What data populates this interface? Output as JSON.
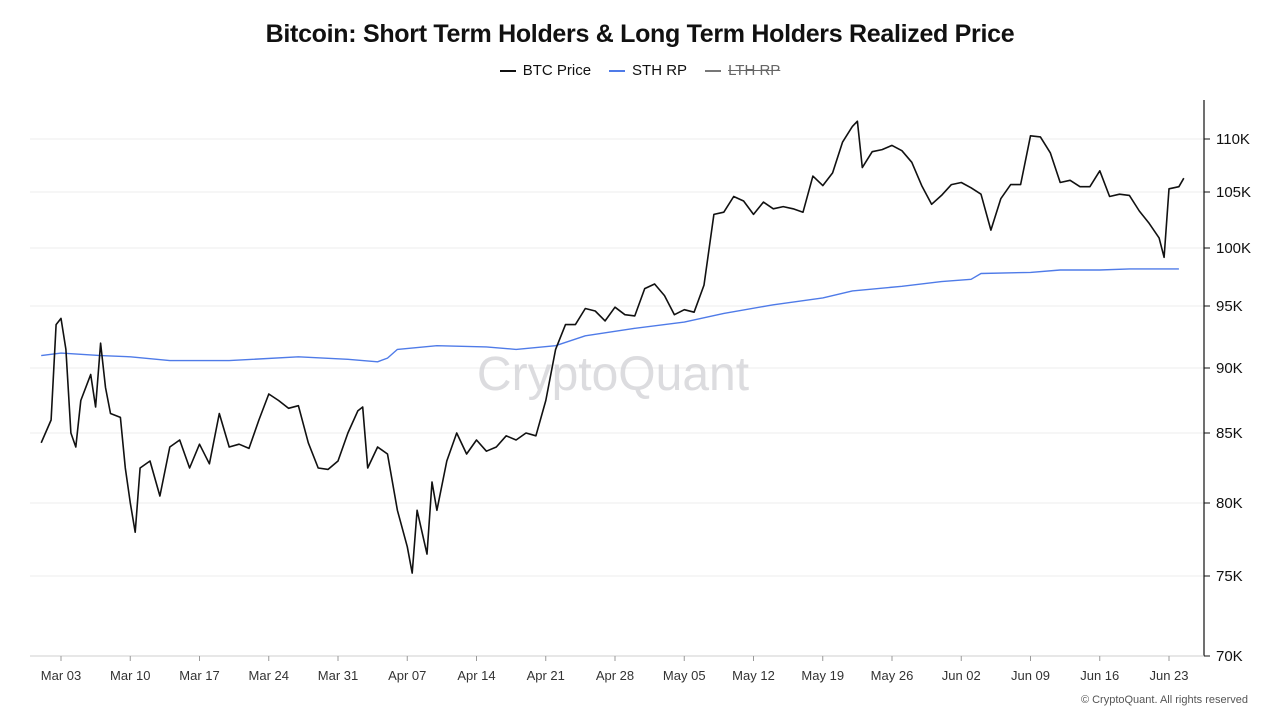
{
  "chart_data": {
    "type": "line",
    "title": "Bitcoin: Short Term Holders & Long Term Holders Realized Price",
    "legend": [
      {
        "name": "BTC Price",
        "color": "#111111",
        "enabled": true
      },
      {
        "name": "STH RP",
        "color": "#4f7be8",
        "enabled": true
      },
      {
        "name": "LTH RP",
        "color": "#777777",
        "enabled": false
      }
    ],
    "legend_placement": "top-center",
    "watermark": "CryptoQuant",
    "x_tick_labels": [
      "Mar 03",
      "Mar 10",
      "Mar 17",
      "Mar 24",
      "Mar 31",
      "Apr 07",
      "Apr 14",
      "Apr 21",
      "Apr 28",
      "May 05",
      "May 12",
      "May 19",
      "May 26",
      "Jun 02",
      "Jun 09",
      "Jun 16",
      "Jun 23"
    ],
    "y_tick_labels": [
      "110K",
      "105K",
      "100K",
      "95K",
      "90K",
      "85K",
      "80K",
      "75K",
      "70K"
    ],
    "y_ticks": [
      110000,
      105000,
      100000,
      95000,
      90000,
      85000,
      80000,
      75000,
      70000
    ],
    "ylim": [
      70000,
      112000
    ],
    "x_start": "2025-02-28",
    "x_end": "2025-06-25",
    "y_axis_position": "right",
    "grid": "horizontal",
    "series": [
      {
        "name": "BTC Price",
        "points": [
          [
            "2025-03-01",
            84300
          ],
          [
            "2025-03-02",
            86000
          ],
          [
            "2025-03-02T12",
            93500
          ],
          [
            "2025-03-03",
            94000
          ],
          [
            "2025-03-03T12",
            91500
          ],
          [
            "2025-03-04",
            85000
          ],
          [
            "2025-03-04T12",
            84000
          ],
          [
            "2025-03-05",
            87500
          ],
          [
            "2025-03-06",
            89500
          ],
          [
            "2025-03-06T12",
            87000
          ],
          [
            "2025-03-07",
            92000
          ],
          [
            "2025-03-07T12",
            88500
          ],
          [
            "2025-03-08",
            86500
          ],
          [
            "2025-03-09",
            86200
          ],
          [
            "2025-03-09T12",
            82500
          ],
          [
            "2025-03-10",
            80000
          ],
          [
            "2025-03-10T12",
            78000
          ],
          [
            "2025-03-11",
            82500
          ],
          [
            "2025-03-12",
            83000
          ],
          [
            "2025-03-13",
            80500
          ],
          [
            "2025-03-14",
            84000
          ],
          [
            "2025-03-15",
            84500
          ],
          [
            "2025-03-16",
            82500
          ],
          [
            "2025-03-17",
            84200
          ],
          [
            "2025-03-18",
            82800
          ],
          [
            "2025-03-19",
            86500
          ],
          [
            "2025-03-20",
            84000
          ],
          [
            "2025-03-21",
            84200
          ],
          [
            "2025-03-22",
            83900
          ],
          [
            "2025-03-23",
            86000
          ],
          [
            "2025-03-24",
            88000
          ],
          [
            "2025-03-25",
            87500
          ],
          [
            "2025-03-26",
            86900
          ],
          [
            "2025-03-27",
            87100
          ],
          [
            "2025-03-28",
            84300
          ],
          [
            "2025-03-29",
            82500
          ],
          [
            "2025-03-30",
            82400
          ],
          [
            "2025-03-31",
            83000
          ],
          [
            "2025-04-01",
            85000
          ],
          [
            "2025-04-02",
            86700
          ],
          [
            "2025-04-02T12",
            87000
          ],
          [
            "2025-04-03",
            82500
          ],
          [
            "2025-04-04",
            84000
          ],
          [
            "2025-04-05",
            83500
          ],
          [
            "2025-04-06",
            79500
          ],
          [
            "2025-04-07",
            77000
          ],
          [
            "2025-04-07T12",
            75200
          ],
          [
            "2025-04-08",
            79500
          ],
          [
            "2025-04-09",
            76500
          ],
          [
            "2025-04-09T12",
            81500
          ],
          [
            "2025-04-10",
            79500
          ],
          [
            "2025-04-11",
            83000
          ],
          [
            "2025-04-12",
            85000
          ],
          [
            "2025-04-13",
            83500
          ],
          [
            "2025-04-14",
            84500
          ],
          [
            "2025-04-15",
            83700
          ],
          [
            "2025-04-16",
            84000
          ],
          [
            "2025-04-17",
            84800
          ],
          [
            "2025-04-18",
            84500
          ],
          [
            "2025-04-19",
            85000
          ],
          [
            "2025-04-20",
            84800
          ],
          [
            "2025-04-21",
            87500
          ],
          [
            "2025-04-22",
            91500
          ],
          [
            "2025-04-23",
            93500
          ],
          [
            "2025-04-24",
            93500
          ],
          [
            "2025-04-25",
            94800
          ],
          [
            "2025-04-26",
            94600
          ],
          [
            "2025-04-27",
            93800
          ],
          [
            "2025-04-28",
            94900
          ],
          [
            "2025-04-29",
            94300
          ],
          [
            "2025-04-30",
            94200
          ],
          [
            "2025-05-01",
            96500
          ],
          [
            "2025-05-02",
            96900
          ],
          [
            "2025-05-03",
            95900
          ],
          [
            "2025-05-04",
            94300
          ],
          [
            "2025-05-05",
            94700
          ],
          [
            "2025-05-06",
            94500
          ],
          [
            "2025-05-07",
            96800
          ],
          [
            "2025-05-08",
            103000
          ],
          [
            "2025-05-09",
            103200
          ],
          [
            "2025-05-10",
            104600
          ],
          [
            "2025-05-11",
            104200
          ],
          [
            "2025-05-12",
            103000
          ],
          [
            "2025-05-13",
            104100
          ],
          [
            "2025-05-14",
            103500
          ],
          [
            "2025-05-15",
            103700
          ],
          [
            "2025-05-16",
            103500
          ],
          [
            "2025-05-17",
            103200
          ],
          [
            "2025-05-18",
            106500
          ],
          [
            "2025-05-19",
            105600
          ],
          [
            "2025-05-20",
            106800
          ],
          [
            "2025-05-21",
            109700
          ],
          [
            "2025-05-22",
            111200
          ],
          [
            "2025-05-22T12",
            111700
          ],
          [
            "2025-05-23",
            107300
          ],
          [
            "2025-05-24",
            108800
          ],
          [
            "2025-05-25",
            109000
          ],
          [
            "2025-05-26",
            109400
          ],
          [
            "2025-05-27",
            108900
          ],
          [
            "2025-05-28",
            107800
          ],
          [
            "2025-05-29",
            105600
          ],
          [
            "2025-05-30",
            103900
          ],
          [
            "2025-05-31",
            104700
          ],
          [
            "2025-06-01",
            105700
          ],
          [
            "2025-06-02",
            105900
          ],
          [
            "2025-06-03",
            105400
          ],
          [
            "2025-06-04",
            104800
          ],
          [
            "2025-06-05",
            101600
          ],
          [
            "2025-06-06",
            104400
          ],
          [
            "2025-06-07",
            105700
          ],
          [
            "2025-06-08",
            105700
          ],
          [
            "2025-06-09",
            110300
          ],
          [
            "2025-06-10",
            110200
          ],
          [
            "2025-06-11",
            108700
          ],
          [
            "2025-06-12",
            105900
          ],
          [
            "2025-06-13",
            106100
          ],
          [
            "2025-06-14",
            105500
          ],
          [
            "2025-06-15",
            105500
          ],
          [
            "2025-06-16",
            107000
          ],
          [
            "2025-06-17",
            104600
          ],
          [
            "2025-06-18",
            104800
          ],
          [
            "2025-06-19",
            104700
          ],
          [
            "2025-06-20",
            103300
          ],
          [
            "2025-06-21",
            102200
          ],
          [
            "2025-06-22",
            100900
          ],
          [
            "2025-06-22T12",
            99200
          ],
          [
            "2025-06-23",
            105300
          ],
          [
            "2025-06-24",
            105500
          ],
          [
            "2025-06-24T12",
            106300
          ]
        ]
      },
      {
        "name": "STH RP",
        "points": [
          [
            "2025-03-01",
            91000
          ],
          [
            "2025-03-03",
            91200
          ],
          [
            "2025-03-07",
            91000
          ],
          [
            "2025-03-10",
            90900
          ],
          [
            "2025-03-14",
            90600
          ],
          [
            "2025-03-20",
            90600
          ],
          [
            "2025-03-27",
            90900
          ],
          [
            "2025-04-01",
            90700
          ],
          [
            "2025-04-04",
            90500
          ],
          [
            "2025-04-05",
            90800
          ],
          [
            "2025-04-06",
            91500
          ],
          [
            "2025-04-10",
            91800
          ],
          [
            "2025-04-15",
            91700
          ],
          [
            "2025-04-18",
            91500
          ],
          [
            "2025-04-22",
            91800
          ],
          [
            "2025-04-25",
            92600
          ],
          [
            "2025-04-30",
            93200
          ],
          [
            "2025-05-05",
            93700
          ],
          [
            "2025-05-09",
            94400
          ],
          [
            "2025-05-14",
            95100
          ],
          [
            "2025-05-19",
            95700
          ],
          [
            "2025-05-22",
            96300
          ],
          [
            "2025-05-27",
            96700
          ],
          [
            "2025-05-31",
            97100
          ],
          [
            "2025-06-03",
            97300
          ],
          [
            "2025-06-04",
            97800
          ],
          [
            "2025-06-09",
            97900
          ],
          [
            "2025-06-12",
            98100
          ],
          [
            "2025-06-16",
            98100
          ],
          [
            "2025-06-19",
            98200
          ],
          [
            "2025-06-24",
            98200
          ]
        ]
      }
    ],
    "footer": "© CryptoQuant. All rights reserved"
  }
}
